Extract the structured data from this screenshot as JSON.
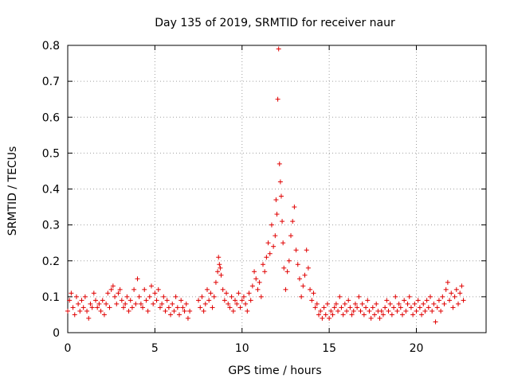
{
  "chart_data": {
    "type": "scatter",
    "title": "Day 135 of 2019, SRMTID for receiver naur",
    "xlabel": "GPS time / hours",
    "ylabel": "SRMTID / TECUs",
    "xlim": [
      0,
      24
    ],
    "ylim": [
      0,
      0.8
    ],
    "xticks": [
      "0",
      "5",
      "10",
      "15",
      "20"
    ],
    "yticks": [
      "0",
      "0.1",
      "0.2",
      "0.3",
      "0.4",
      "0.5",
      "0.6",
      "0.7",
      "0.8"
    ],
    "marker": "+",
    "color": "#e00000",
    "grid": true,
    "series": [
      {
        "name": "SRMTID",
        "points": [
          [
            0.0,
            0.06
          ],
          [
            0.1,
            0.09
          ],
          [
            0.2,
            0.11
          ],
          [
            0.3,
            0.07
          ],
          [
            0.4,
            0.05
          ],
          [
            0.5,
            0.1
          ],
          [
            0.6,
            0.08
          ],
          [
            0.7,
            0.06
          ],
          [
            0.8,
            0.09
          ],
          [
            0.9,
            0.07
          ],
          [
            1.0,
            0.1
          ],
          [
            1.1,
            0.06
          ],
          [
            1.2,
            0.04
          ],
          [
            1.3,
            0.08
          ],
          [
            1.4,
            0.07
          ],
          [
            1.5,
            0.11
          ],
          [
            1.6,
            0.09
          ],
          [
            1.7,
            0.07
          ],
          [
            1.8,
            0.08
          ],
          [
            1.9,
            0.06
          ],
          [
            2.0,
            0.09
          ],
          [
            2.1,
            0.05
          ],
          [
            2.2,
            0.08
          ],
          [
            2.3,
            0.11
          ],
          [
            2.4,
            0.07
          ],
          [
            2.5,
            0.12
          ],
          [
            2.6,
            0.13
          ],
          [
            2.7,
            0.1
          ],
          [
            2.8,
            0.08
          ],
          [
            2.9,
            0.11
          ],
          [
            3.0,
            0.12
          ],
          [
            3.1,
            0.09
          ],
          [
            3.2,
            0.07
          ],
          [
            3.3,
            0.08
          ],
          [
            3.4,
            0.1
          ],
          [
            3.5,
            0.06
          ],
          [
            3.6,
            0.09
          ],
          [
            3.7,
            0.07
          ],
          [
            3.8,
            0.12
          ],
          [
            3.9,
            0.08
          ],
          [
            4.0,
            0.15
          ],
          [
            4.1,
            0.1
          ],
          [
            4.2,
            0.08
          ],
          [
            4.3,
            0.07
          ],
          [
            4.4,
            0.12
          ],
          [
            4.5,
            0.09
          ],
          [
            4.6,
            0.06
          ],
          [
            4.7,
            0.1
          ],
          [
            4.8,
            0.13
          ],
          [
            4.9,
            0.08
          ],
          [
            5.0,
            0.11
          ],
          [
            5.1,
            0.09
          ],
          [
            5.2,
            0.12
          ],
          [
            5.3,
            0.07
          ],
          [
            5.4,
            0.08
          ],
          [
            5.5,
            0.1
          ],
          [
            5.6,
            0.06
          ],
          [
            5.7,
            0.09
          ],
          [
            5.8,
            0.07
          ],
          [
            5.9,
            0.05
          ],
          [
            6.0,
            0.08
          ],
          [
            6.1,
            0.06
          ],
          [
            6.2,
            0.1
          ],
          [
            6.3,
            0.07
          ],
          [
            6.4,
            0.05
          ],
          [
            6.5,
            0.09
          ],
          [
            6.6,
            0.07
          ],
          [
            6.7,
            0.06
          ],
          [
            6.8,
            0.08
          ],
          [
            6.9,
            0.04
          ],
          [
            7.0,
            0.06
          ],
          [
            7.5,
            0.09
          ],
          [
            7.6,
            0.07
          ],
          [
            7.7,
            0.1
          ],
          [
            7.8,
            0.06
          ],
          [
            7.9,
            0.08
          ],
          [
            8.0,
            0.12
          ],
          [
            8.1,
            0.09
          ],
          [
            8.2,
            0.11
          ],
          [
            8.3,
            0.07
          ],
          [
            8.4,
            0.1
          ],
          [
            8.5,
            0.14
          ],
          [
            8.6,
            0.17
          ],
          [
            8.65,
            0.21
          ],
          [
            8.7,
            0.19
          ],
          [
            8.75,
            0.18
          ],
          [
            8.8,
            0.16
          ],
          [
            8.9,
            0.12
          ],
          [
            9.0,
            0.09
          ],
          [
            9.1,
            0.11
          ],
          [
            9.2,
            0.08
          ],
          [
            9.3,
            0.07
          ],
          [
            9.4,
            0.1
          ],
          [
            9.5,
            0.06
          ],
          [
            9.6,
            0.09
          ],
          [
            9.7,
            0.08
          ],
          [
            9.8,
            0.11
          ],
          [
            9.9,
            0.07
          ],
          [
            10.0,
            0.09
          ],
          [
            10.1,
            0.1
          ],
          [
            10.2,
            0.08
          ],
          [
            10.3,
            0.06
          ],
          [
            10.4,
            0.11
          ],
          [
            10.5,
            0.09
          ],
          [
            10.6,
            0.13
          ],
          [
            10.7,
            0.17
          ],
          [
            10.8,
            0.15
          ],
          [
            10.9,
            0.12
          ],
          [
            11.0,
            0.14
          ],
          [
            11.1,
            0.1
          ],
          [
            11.2,
            0.19
          ],
          [
            11.3,
            0.17
          ],
          [
            11.4,
            0.21
          ],
          [
            11.5,
            0.25
          ],
          [
            11.6,
            0.22
          ],
          [
            11.7,
            0.3
          ],
          [
            11.8,
            0.24
          ],
          [
            11.9,
            0.27
          ],
          [
            11.95,
            0.37
          ],
          [
            12.0,
            0.33
          ],
          [
            12.05,
            0.65
          ],
          [
            12.1,
            0.79
          ],
          [
            12.15,
            0.47
          ],
          [
            12.2,
            0.42
          ],
          [
            12.25,
            0.38
          ],
          [
            12.3,
            0.31
          ],
          [
            12.35,
            0.25
          ],
          [
            12.4,
            0.18
          ],
          [
            12.5,
            0.12
          ],
          [
            12.6,
            0.17
          ],
          [
            12.7,
            0.2
          ],
          [
            12.8,
            0.27
          ],
          [
            12.9,
            0.31
          ],
          [
            13.0,
            0.35
          ],
          [
            13.1,
            0.23
          ],
          [
            13.2,
            0.19
          ],
          [
            13.3,
            0.15
          ],
          [
            13.4,
            0.1
          ],
          [
            13.5,
            0.13
          ],
          [
            13.6,
            0.16
          ],
          [
            13.7,
            0.23
          ],
          [
            13.8,
            0.18
          ],
          [
            13.9,
            0.12
          ],
          [
            14.0,
            0.09
          ],
          [
            14.1,
            0.11
          ],
          [
            14.2,
            0.07
          ],
          [
            14.3,
            0.08
          ],
          [
            14.4,
            0.05
          ],
          [
            14.5,
            0.06
          ],
          [
            14.6,
            0.04
          ],
          [
            14.7,
            0.07
          ],
          [
            14.8,
            0.05
          ],
          [
            14.9,
            0.08
          ],
          [
            15.0,
            0.04
          ],
          [
            15.1,
            0.06
          ],
          [
            15.2,
            0.05
          ],
          [
            15.3,
            0.07
          ],
          [
            15.4,
            0.08
          ],
          [
            15.5,
            0.06
          ],
          [
            15.6,
            0.1
          ],
          [
            15.7,
            0.07
          ],
          [
            15.8,
            0.05
          ],
          [
            15.9,
            0.08
          ],
          [
            16.0,
            0.06
          ],
          [
            16.1,
            0.09
          ],
          [
            16.2,
            0.07
          ],
          [
            16.3,
            0.05
          ],
          [
            16.4,
            0.06
          ],
          [
            16.5,
            0.08
          ],
          [
            16.6,
            0.07
          ],
          [
            16.7,
            0.1
          ],
          [
            16.8,
            0.06
          ],
          [
            16.9,
            0.08
          ],
          [
            17.0,
            0.05
          ],
          [
            17.1,
            0.07
          ],
          [
            17.2,
            0.09
          ],
          [
            17.3,
            0.06
          ],
          [
            17.4,
            0.04
          ],
          [
            17.5,
            0.07
          ],
          [
            17.6,
            0.05
          ],
          [
            17.7,
            0.08
          ],
          [
            17.8,
            0.06
          ],
          [
            17.9,
            0.04
          ],
          [
            18.0,
            0.06
          ],
          [
            18.1,
            0.05
          ],
          [
            18.2,
            0.07
          ],
          [
            18.3,
            0.09
          ],
          [
            18.4,
            0.06
          ],
          [
            18.5,
            0.08
          ],
          [
            18.6,
            0.05
          ],
          [
            18.7,
            0.07
          ],
          [
            18.8,
            0.1
          ],
          [
            18.9,
            0.06
          ],
          [
            19.0,
            0.08
          ],
          [
            19.1,
            0.07
          ],
          [
            19.2,
            0.05
          ],
          [
            19.3,
            0.09
          ],
          [
            19.4,
            0.06
          ],
          [
            19.5,
            0.08
          ],
          [
            19.6,
            0.1
          ],
          [
            19.7,
            0.07
          ],
          [
            19.8,
            0.05
          ],
          [
            19.9,
            0.08
          ],
          [
            20.0,
            0.06
          ],
          [
            20.1,
            0.09
          ],
          [
            20.2,
            0.07
          ],
          [
            20.3,
            0.05
          ],
          [
            20.4,
            0.08
          ],
          [
            20.5,
            0.06
          ],
          [
            20.6,
            0.09
          ],
          [
            20.7,
            0.07
          ],
          [
            20.8,
            0.1
          ],
          [
            20.9,
            0.06
          ],
          [
            21.0,
            0.08
          ],
          [
            21.1,
            0.03
          ],
          [
            21.2,
            0.07
          ],
          [
            21.3,
            0.09
          ],
          [
            21.4,
            0.06
          ],
          [
            21.5,
            0.1
          ],
          [
            21.6,
            0.08
          ],
          [
            21.7,
            0.12
          ],
          [
            21.8,
            0.14
          ],
          [
            21.9,
            0.09
          ],
          [
            22.0,
            0.11
          ],
          [
            22.1,
            0.07
          ],
          [
            22.2,
            0.1
          ],
          [
            22.3,
            0.12
          ],
          [
            22.4,
            0.08
          ],
          [
            22.5,
            0.11
          ],
          [
            22.6,
            0.13
          ],
          [
            22.7,
            0.09
          ]
        ]
      }
    ]
  }
}
